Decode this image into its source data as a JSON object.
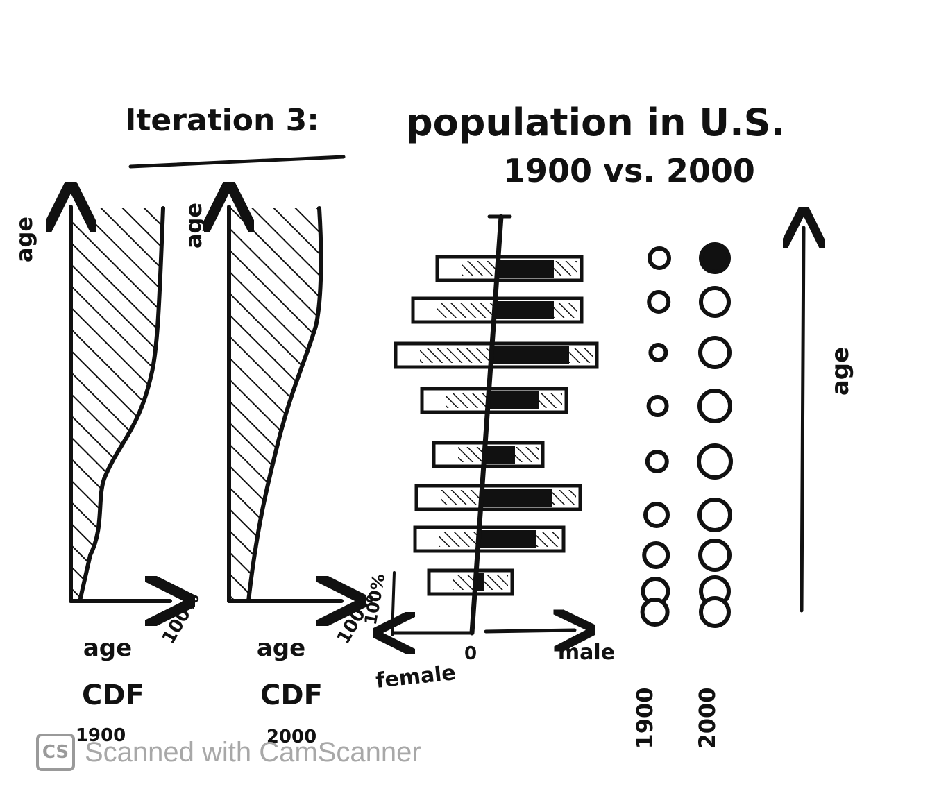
{
  "title": {
    "prefix": "Iteration 3:",
    "main": "population in U.S.",
    "sub": "1900 vs. 2000"
  },
  "cdf_panels": [
    {
      "axis_label_top": "age",
      "y_label": "age",
      "x_label": "100%",
      "caption": "CDF",
      "year": "1900"
    },
    {
      "axis_label_top": "age",
      "y_label": "age",
      "x_label": "100%",
      "caption": "CDF",
      "year": "2000"
    }
  ],
  "pyramid": {
    "y_label": "100%",
    "origin_label": "0",
    "left_label": "female",
    "right_label": "male",
    "bar_count": 8
  },
  "dot_columns": {
    "years": [
      "1900",
      "2000"
    ],
    "axis_label": "age"
  },
  "colors": {
    "ink": "#111111",
    "paper": "#ffffff",
    "watermark": "#a8a8a8"
  },
  "watermark": {
    "logo": "CS",
    "text": "Scanned with CamScanner"
  }
}
